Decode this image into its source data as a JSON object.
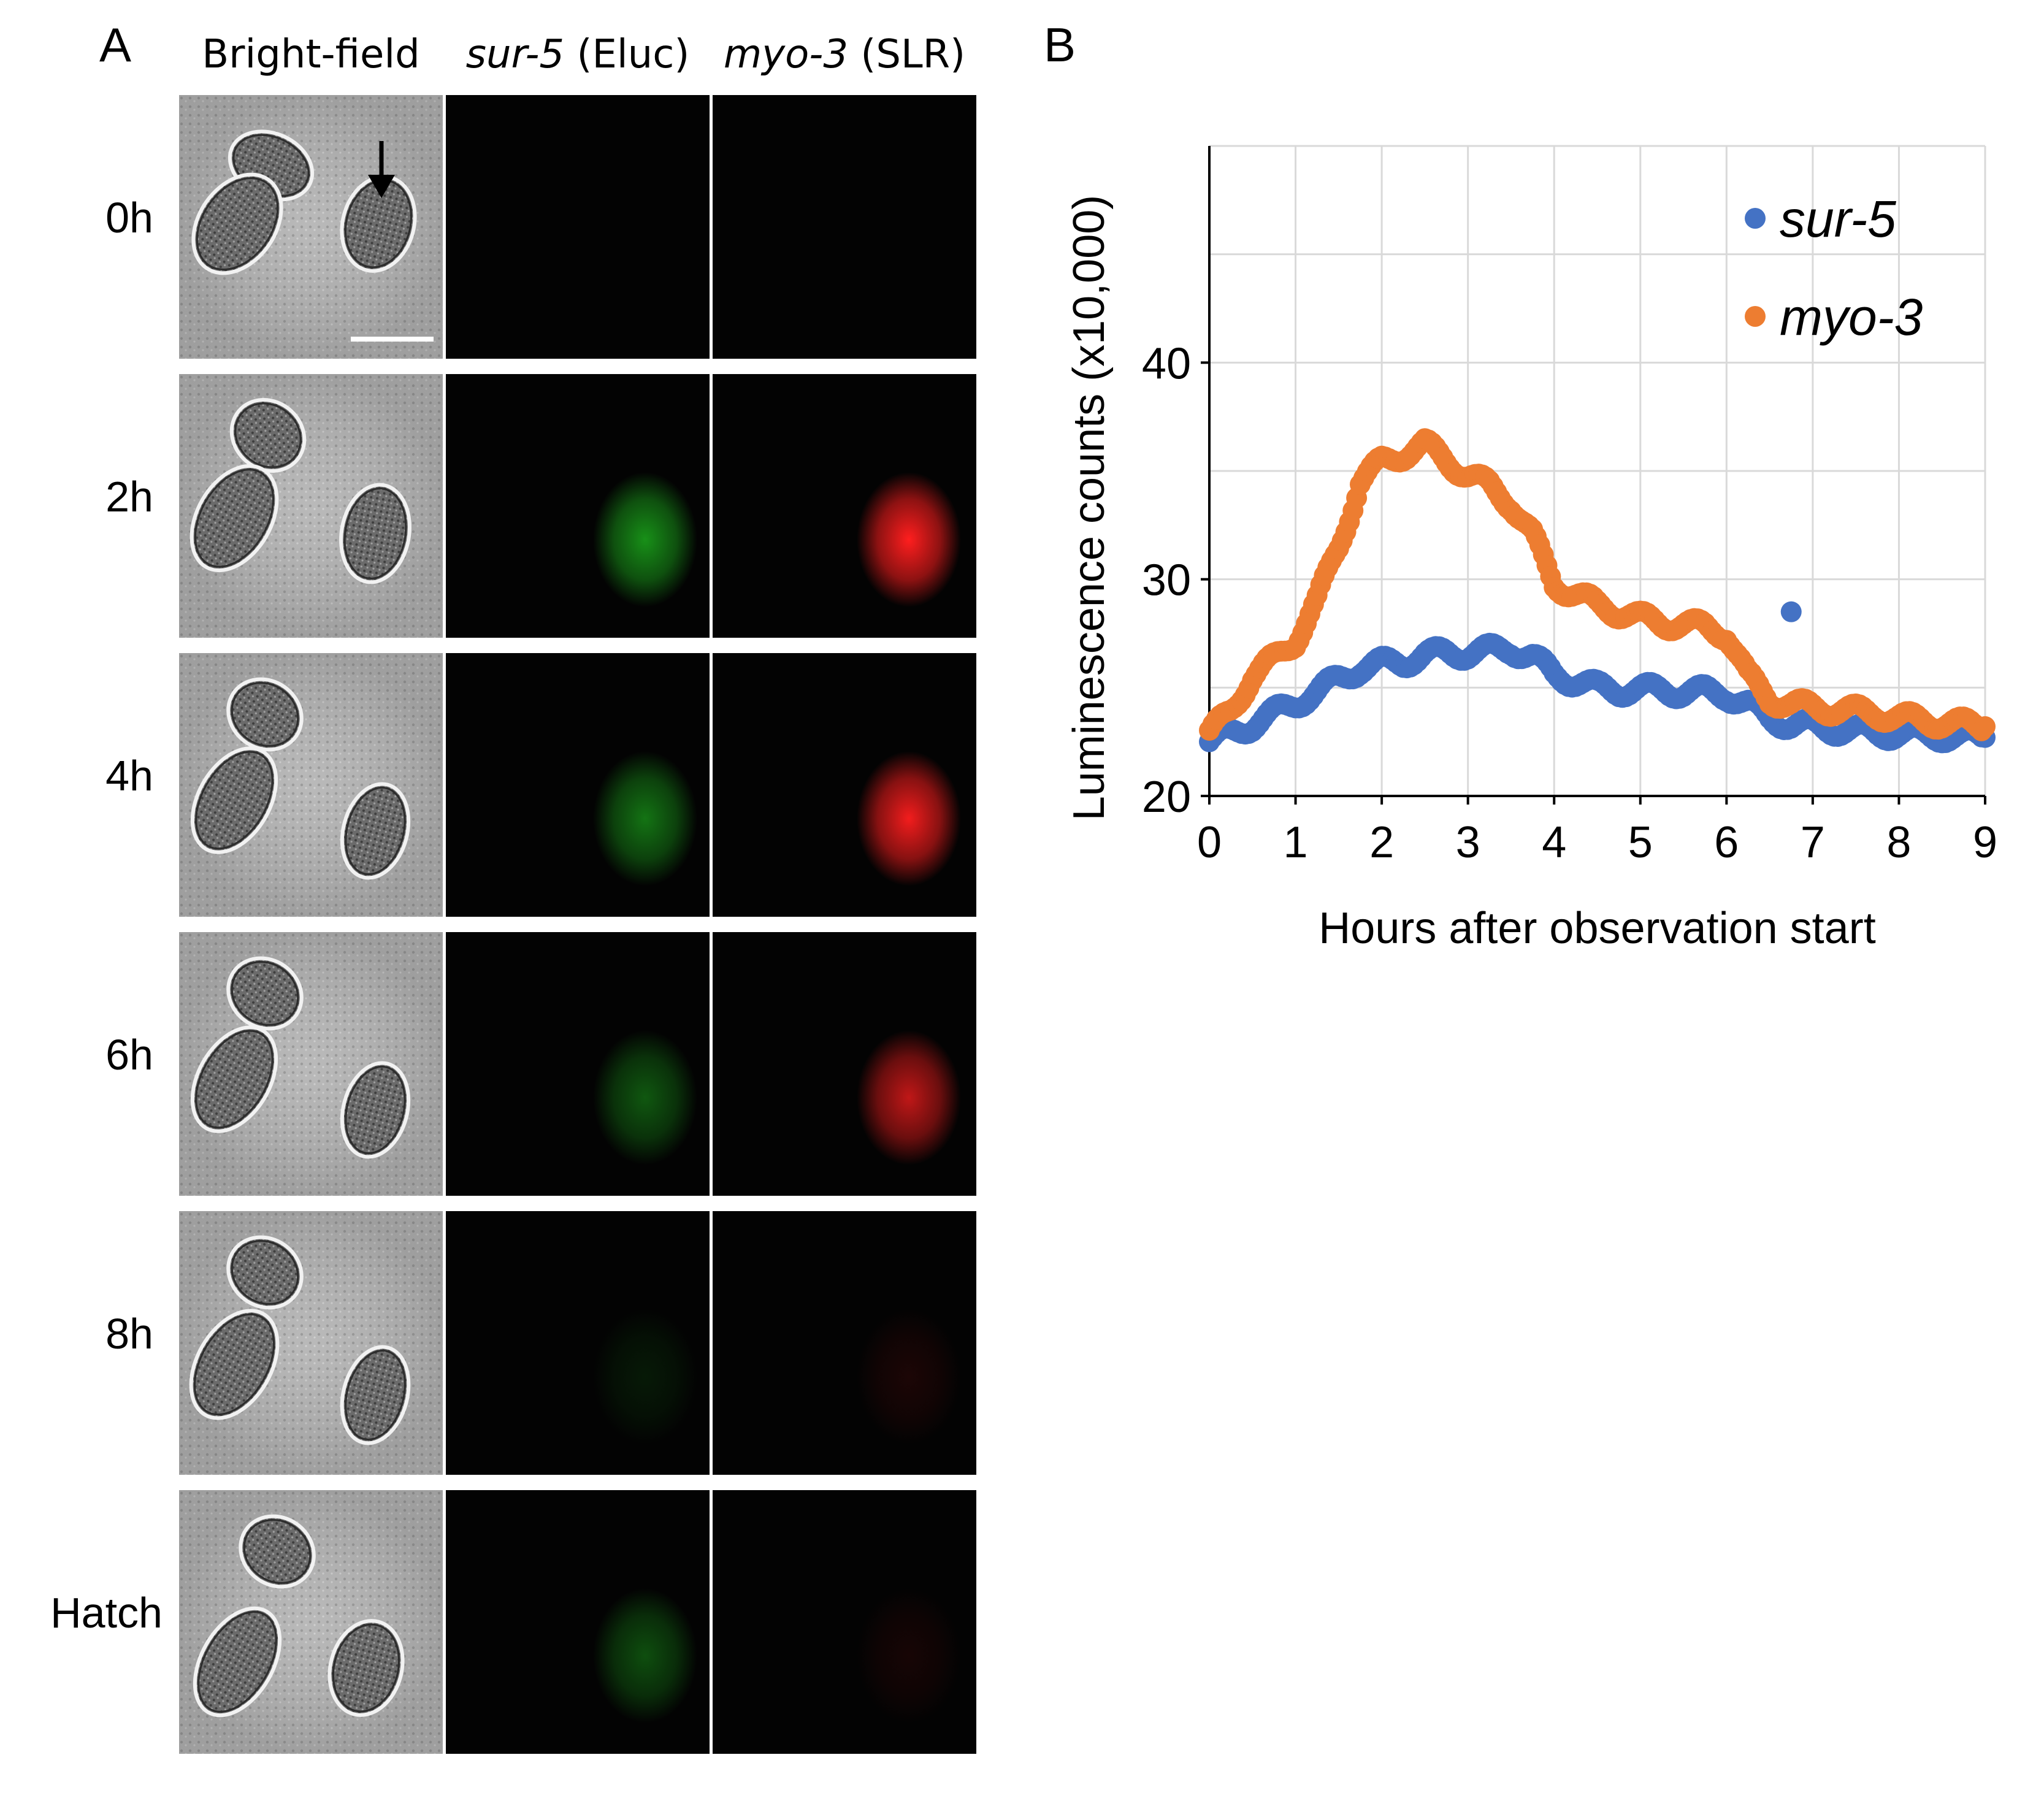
{
  "panel_a": {
    "letter": "A",
    "columns": [
      {
        "prefix": "",
        "italic": "",
        "plain": "Bright-field"
      },
      {
        "italic": "sur-5",
        "plain": " (Eluc)"
      },
      {
        "italic": "myo-3",
        "plain": " (SLR)"
      }
    ],
    "rows": [
      "0h",
      "2h",
      "4h",
      "6h",
      "8h",
      "Hatch"
    ],
    "green_intensity": [
      0.0,
      0.75,
      0.6,
      0.45,
      0.12,
      0.4
    ],
    "red_intensity": [
      0.0,
      1.0,
      0.95,
      0.75,
      0.1,
      0.08
    ]
  },
  "panel_b": {
    "letter": "B",
    "chart_data": {
      "type": "scatter",
      "xlabel": "Hours after observation start",
      "ylabel": "Luminescence counts (x10,000)",
      "xlim": [
        0,
        9
      ],
      "ylim": [
        20,
        50
      ],
      "x_ticks": [
        "0",
        "1",
        "2",
        "3",
        "4",
        "5",
        "6",
        "7",
        "8",
        "9"
      ],
      "y_ticks": [
        "20",
        "30",
        "40"
      ],
      "grid": true,
      "legend_position": "top-right",
      "series": [
        {
          "name": "sur-5",
          "color": "#4472C4",
          "x": [
            0,
            0.25,
            0.5,
            0.75,
            1.0,
            1.25,
            1.5,
            1.75,
            2.0,
            2.25,
            2.5,
            2.75,
            3.0,
            3.25,
            3.5,
            3.75,
            4.0,
            4.25,
            4.5,
            4.75,
            5.0,
            5.25,
            5.5,
            5.75,
            6.0,
            6.25,
            6.5,
            6.75,
            7.0,
            7.25,
            7.5,
            7.75,
            8.0,
            8.25,
            8.5,
            8.75,
            9.0
          ],
          "y": [
            22.5,
            22.9,
            23.3,
            23.8,
            24.3,
            24.8,
            25.4,
            25.9,
            26.1,
            26.2,
            26.5,
            26.6,
            26.6,
            26.7,
            26.8,
            26.4,
            25.6,
            25.3,
            25.0,
            24.9,
            24.9,
            24.9,
            24.8,
            24.8,
            24.7,
            24.2,
            23.6,
            23.3,
            23.2,
            23.1,
            23.0,
            22.9,
            22.9,
            22.8,
            22.8,
            22.7,
            22.7
          ]
        },
        {
          "name": "myo-3",
          "color": "#ED7D31",
          "x": [
            0,
            0.25,
            0.5,
            0.75,
            1.0,
            1.25,
            1.5,
            1.75,
            2.0,
            2.25,
            2.5,
            2.75,
            3.0,
            3.25,
            3.5,
            3.75,
            4.0,
            4.25,
            4.5,
            4.75,
            5.0,
            5.25,
            5.5,
            5.75,
            6.0,
            6.25,
            6.5,
            6.75,
            7.0,
            7.25,
            7.5,
            7.75,
            8.0,
            8.25,
            8.5,
            8.75,
            9.0
          ],
          "y": [
            22.8,
            24.0,
            25.5,
            26.3,
            27.2,
            29.0,
            31.5,
            34.5,
            35.4,
            35.8,
            36.2,
            35.5,
            34.8,
            34.3,
            33.5,
            32.0,
            29.8,
            29.3,
            28.8,
            28.5,
            28.2,
            28.0,
            27.9,
            27.8,
            27.5,
            25.5,
            24.5,
            24.2,
            24.1,
            24.0,
            23.9,
            23.8,
            23.6,
            23.5,
            23.4,
            23.3,
            23.2
          ]
        },
        {
          "name": "",
          "color": "#4472C4",
          "x": [
            6.75
          ],
          "y": [
            28.5
          ]
        }
      ]
    }
  }
}
